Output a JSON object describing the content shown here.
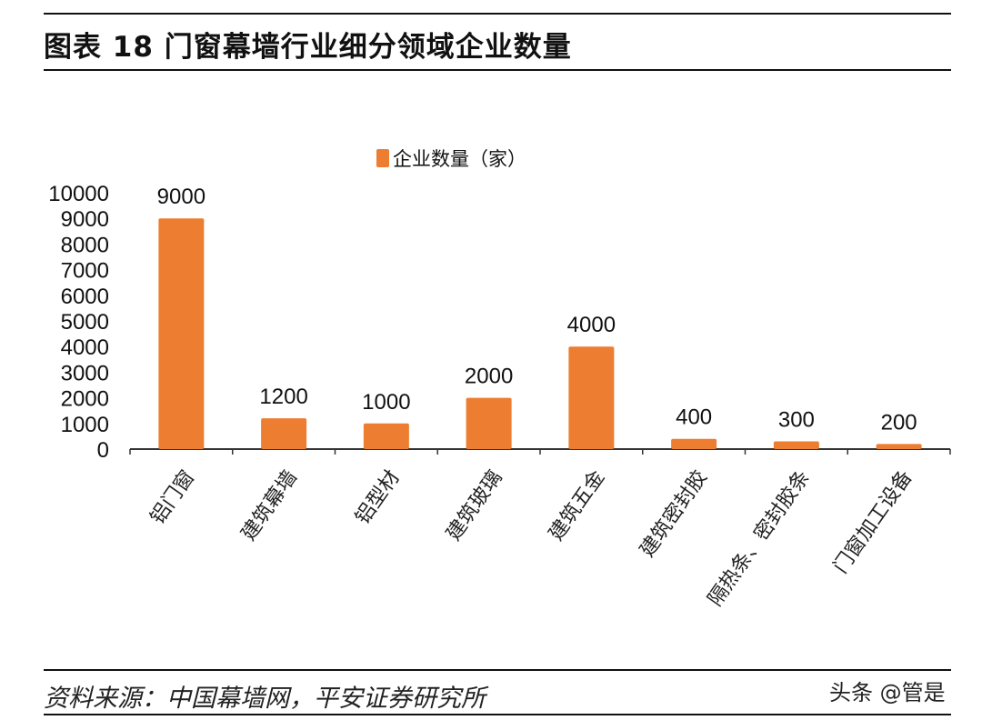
{
  "header": {
    "title": "图表 18 门窗幕墙行业细分领域企业数量"
  },
  "footer": {
    "source": "资料来源：中国幕墙网，平安证券研究所",
    "watermark": "头条 @管是"
  },
  "chart_data": {
    "type": "bar",
    "title": "",
    "categories": [
      "铝门窗",
      "建筑幕墙",
      "铝型材",
      "建筑玻璃",
      "建筑五金",
      "建筑密封胶",
      "隔热条、密封胶条",
      "门窗加工设备"
    ],
    "series": [
      {
        "name": "企业数量（家）",
        "values": [
          9000,
          1200,
          1000,
          2000,
          4000,
          400,
          300,
          200
        ],
        "color": "#ED7D31"
      }
    ],
    "yticks": [
      0,
      1000,
      2000,
      3000,
      4000,
      5000,
      6000,
      7000,
      8000,
      9000,
      10000
    ],
    "ylim": [
      0,
      10000
    ],
    "xlabel": "",
    "ylabel": "",
    "grid": false,
    "legend": "top-center",
    "data_labels": true
  }
}
